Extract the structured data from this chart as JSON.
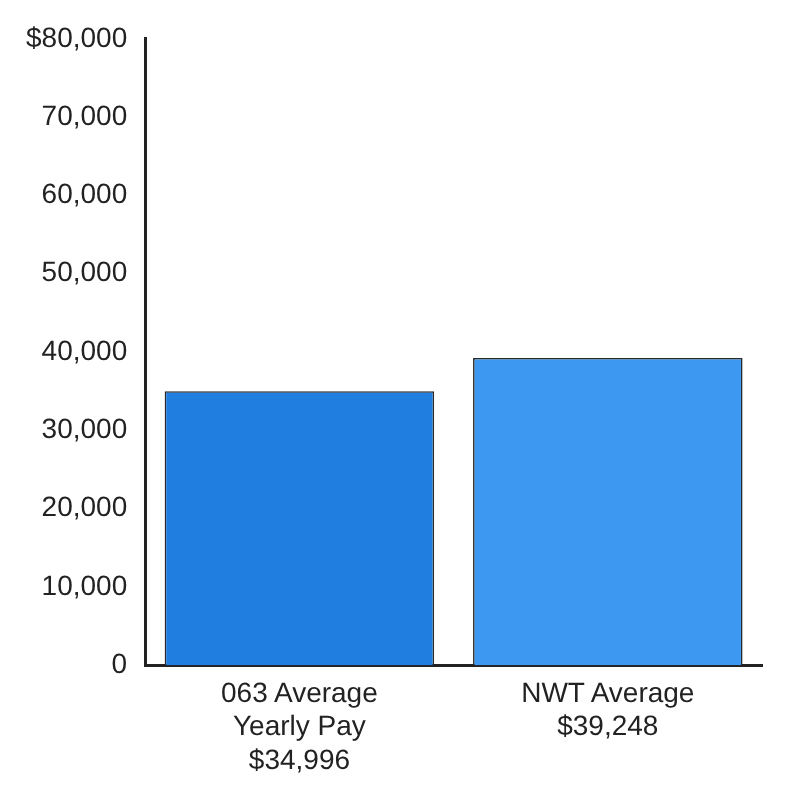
{
  "chart_data": {
    "type": "bar",
    "categories": [
      "063 Average Yearly Pay",
      "NWT Average"
    ],
    "values": [
      34996,
      39248
    ],
    "value_labels": [
      "$34,996",
      "$39,248"
    ],
    "colors": [
      "#1f7ee0",
      "#3d98f2"
    ],
    "ylim": [
      0,
      80000
    ],
    "yticks": [
      0,
      {
        "value": 10000,
        "label": "10,000"
      },
      {
        "value": 20000,
        "label": "20,000"
      },
      {
        "value": 30000,
        "label": "30,000"
      },
      {
        "value": 40000,
        "label": "40,000"
      },
      {
        "value": 50000,
        "label": "50,000"
      },
      {
        "value": 60000,
        "label": "60,000"
      },
      {
        "value": 70000,
        "label": "70,000"
      },
      {
        "value": 80000,
        "label": "$80,000"
      }
    ],
    "grid": false,
    "legend": false
  }
}
